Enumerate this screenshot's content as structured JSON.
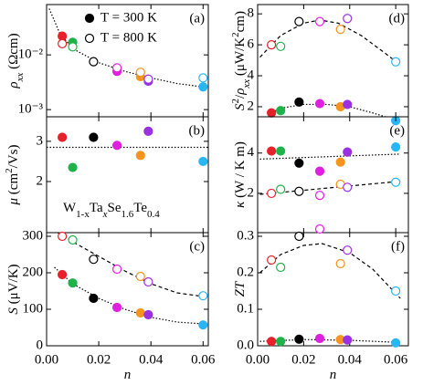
{
  "chart_data": [
    {
      "type": "scatter",
      "panel_label": "(a)",
      "log_y": true,
      "ylabel": [
        {
          "text": "ρ",
          "style": "italic"
        },
        {
          "text": "xx",
          "style": "sub-italic"
        },
        {
          "text": " (Ωcm)",
          "style": "normal"
        }
      ],
      "x": [
        0.006,
        0.01,
        0.018,
        0.027,
        0.036,
        0.039,
        0.06
      ],
      "point_colors": [
        "#e8202a",
        "#1db34a",
        "#000000",
        "#e020e0",
        "#f7941d",
        "#9b30e0",
        "#29b6f6"
      ],
      "xlim": [
        0,
        0.062
      ],
      "xticks": [
        0,
        0.02,
        0.04,
        0.06
      ],
      "ylim": [
        0.00074,
        0.083
      ],
      "yticks": [
        {
          "value": 0.001,
          "label": "10⁻³"
        },
        {
          "value": 0.01,
          "label": "10⁻²"
        }
      ],
      "series": [
        {
          "name": "T = 300 K",
          "filled": true,
          "values": [
            0.022,
            0.017,
            null,
            0.005,
            0.004,
            0.0033,
            0.0026
          ],
          "fit": {
            "dash": "1.5 2",
            "x": [
              0.001,
              0.005,
              0.01,
              0.02,
              0.03,
              0.04,
              0.05,
              0.06
            ],
            "values": [
              0.07,
              0.025,
              0.013,
              0.0072,
              0.005,
              0.0038,
              0.003,
              0.0026
            ]
          }
        },
        {
          "name": "T = 800 K",
          "filled": false,
          "values": [
            0.016,
            0.014,
            0.0075,
            0.0058,
            0.0048,
            0.0036,
            0.0038
          ]
        }
      ]
    },
    {
      "type": "scatter",
      "panel_label": "(b)",
      "ylabel": [
        {
          "text": "μ",
          "style": "italic"
        },
        {
          "text": " (cm",
          "style": "normal"
        },
        {
          "text": "2",
          "style": "sup"
        },
        {
          "text": "/Vs)",
          "style": "normal"
        }
      ],
      "annotation": [
        {
          "text": "W",
          "style": "normal"
        },
        {
          "text": "1-x",
          "style": "sub"
        },
        {
          "text": "Ta",
          "style": "normal"
        },
        {
          "text": "x",
          "style": "sub-italic"
        },
        {
          "text": "Se",
          "style": "normal"
        },
        {
          "text": "1.6",
          "style": "sub"
        },
        {
          "text": "Te",
          "style": "normal"
        },
        {
          "text": "0.4",
          "style": "sub"
        }
      ],
      "x": [
        0.006,
        0.01,
        0.018,
        0.027,
        0.036,
        0.039,
        0.06
      ],
      "point_colors": [
        "#e8202a",
        "#1db34a",
        "#000000",
        "#e020e0",
        "#f7941d",
        "#9b30e0",
        "#29b6f6"
      ],
      "xlim": [
        0,
        0.062
      ],
      "xticks": [
        0,
        0.02,
        0.04,
        0.06
      ],
      "ylim": [
        0.73,
        3.61
      ],
      "yticks": [
        2,
        3
      ],
      "series": [
        {
          "filled": true,
          "values": [
            3.1,
            2.35,
            3.1,
            2.9,
            2.65,
            3.25,
            2.5
          ],
          "fit": {
            "dash": "1.5 2",
            "x": [
              0,
              0.062
            ],
            "values": [
              2.85,
              2.85
            ]
          }
        }
      ]
    },
    {
      "type": "scatter",
      "panel_label": "(c)",
      "ylabel": [
        {
          "text": "S",
          "style": "italic"
        },
        {
          "text": " (μV/K)",
          "style": "normal"
        }
      ],
      "xlabel": [
        {
          "text": "n",
          "style": "italic"
        }
      ],
      "x": [
        0.006,
        0.01,
        0.018,
        0.027,
        0.036,
        0.039,
        0.06
      ],
      "point_colors": [
        "#e8202a",
        "#1db34a",
        "#000000",
        "#e020e0",
        "#f7941d",
        "#9b30e0",
        "#29b6f6"
      ],
      "xlim": [
        0,
        0.062
      ],
      "xticks": [
        {
          "value": 0,
          "label": "0.00"
        },
        {
          "value": 0.02,
          "label": "0.02"
        },
        {
          "value": 0.04,
          "label": "0.04"
        },
        {
          "value": 0.06,
          "label": "0.06"
        }
      ],
      "ylim": [
        0,
        310
      ],
      "yticks": [
        0,
        100,
        200,
        300
      ],
      "series": [
        {
          "filled": true,
          "values": [
            195,
            172,
            130,
            105,
            90,
            85,
            57
          ],
          "fit": {
            "dash": "1.5 2",
            "x": [
              0.003,
              0.01,
              0.02,
              0.03,
              0.04,
              0.05,
              0.06
            ],
            "values": [
              215,
              170,
              130,
              100,
              78,
              65,
              60
            ]
          }
        },
        {
          "filled": false,
          "values": [
            300,
            290,
            237,
            210,
            190,
            175,
            137
          ],
          "fit": {
            "dash": "4 3",
            "x": [
              0.002,
              0.01,
              0.02,
              0.03,
              0.04,
              0.05,
              0.06
            ],
            "values": [
              320,
              285,
              245,
              205,
              170,
              145,
              135
            ]
          }
        }
      ]
    },
    {
      "type": "scatter",
      "panel_label": "(d)",
      "ylabel": [
        {
          "text": "S",
          "style": "italic"
        },
        {
          "text": "2",
          "style": "sup"
        },
        {
          "text": "/",
          "style": "normal"
        },
        {
          "text": "ρ",
          "style": "italic"
        },
        {
          "text": "xx",
          "style": "sub-italic"
        },
        {
          "text": " (μW/K",
          "style": "normal"
        },
        {
          "text": "2",
          "style": "sup"
        },
        {
          "text": "cm)",
          "style": "normal"
        }
      ],
      "x": [
        0.006,
        0.01,
        0.018,
        0.027,
        0.036,
        0.039,
        0.06
      ],
      "point_colors": [
        "#e8202a",
        "#1db34a",
        "#000000",
        "#e020e0",
        "#f7941d",
        "#9b30e0",
        "#29b6f6"
      ],
      "xlim": [
        0,
        0.0655
      ],
      "xticks": [
        0,
        0.02,
        0.04,
        0.06
      ],
      "ylim": [
        1.35,
        8.6
      ],
      "yticks": [
        2,
        4,
        6,
        8
      ],
      "series": [
        {
          "filled": true,
          "values": [
            1.6,
            1.75,
            2.3,
            2.2,
            2.0,
            2.15,
            1.1
          ],
          "fit": {
            "dash": "1.5 2",
            "x": [
              0.005,
              0.01,
              0.02,
              0.03,
              0.04,
              0.05,
              0.06
            ],
            "values": [
              1.55,
              1.9,
              2.15,
              2.15,
              2.0,
              1.6,
              1.15
            ]
          }
        },
        {
          "filled": false,
          "values": [
            6.0,
            5.9,
            7.5,
            7.5,
            7.0,
            7.7,
            4.9
          ],
          "fit": {
            "dash": "4 3",
            "x": [
              0.001,
              0.01,
              0.02,
              0.027,
              0.035,
              0.045,
              0.055,
              0.062
            ],
            "values": [
              5.2,
              6.6,
              7.4,
              7.6,
              7.4,
              6.6,
              5.5,
              4.7
            ]
          }
        }
      ]
    },
    {
      "type": "scatter",
      "panel_label": "(e)",
      "ylabel": [
        {
          "text": "κ",
          "style": "italic"
        },
        {
          "text": " (W / K m)",
          "style": "normal"
        }
      ],
      "x": [
        0.006,
        0.01,
        0.018,
        0.027,
        0.036,
        0.039,
        0.06
      ],
      "point_colors": [
        "#e8202a",
        "#1db34a",
        "#000000",
        "#e020e0",
        "#f7941d",
        "#9b30e0",
        "#29b6f6"
      ],
      "xlim": [
        0,
        0.0655
      ],
      "xticks": [
        0,
        0.02,
        0.04,
        0.06
      ],
      "ylim": [
        0.05,
        5.8
      ],
      "yticks": [
        2,
        4
      ],
      "series": [
        {
          "filled": true,
          "values": [
            4.1,
            4.1,
            3.5,
            3.1,
            3.55,
            4.05,
            4.3
          ],
          "fit": {
            "dash": "1.5 2",
            "x": [
              0.001,
              0.062
            ],
            "values": [
              3.7,
              3.95
            ]
          }
        },
        {
          "filled": false,
          "values": [
            2.0,
            2.2,
            2.1,
            1.9,
            2.45,
            2.3,
            2.55
          ],
          "fit": {
            "dash": "4 3",
            "x": [
              0.001,
              0.062
            ],
            "values": [
              1.95,
              2.6
            ]
          }
        }
      ]
    },
    {
      "type": "scatter",
      "panel_label": "(f)",
      "ylabel": [
        {
          "text": "ZT",
          "style": "italic"
        }
      ],
      "xlabel": [
        {
          "text": "n",
          "style": "italic"
        }
      ],
      "x": [
        0.006,
        0.01,
        0.018,
        0.027,
        0.036,
        0.039,
        0.06
      ],
      "point_colors": [
        "#e8202a",
        "#1db34a",
        "#000000",
        "#e020e0",
        "#f7941d",
        "#9b30e0",
        "#29b6f6"
      ],
      "xlim": [
        0,
        0.0655
      ],
      "xticks": [
        {
          "value": 0,
          "label": "0.00"
        },
        {
          "value": 0.02,
          "label": "0.02"
        },
        {
          "value": 0.04,
          "label": "0.04"
        },
        {
          "value": 0.06,
          "label": "0.06"
        }
      ],
      "ylim": [
        0,
        0.31
      ],
      "yticks": [
        {
          "value": 0,
          "label": "0.0"
        },
        {
          "value": 0.1,
          "label": "0.1"
        },
        {
          "value": 0.2,
          "label": "0.2"
        },
        {
          "value": 0.3,
          "label": "0.3"
        }
      ],
      "series": [
        {
          "filled": true,
          "values": [
            0.012,
            0.012,
            0.018,
            0.02,
            0.017,
            0.016,
            0.008
          ],
          "fit": {
            "dash": "1.5 2",
            "x": [
              0.001,
              0.02,
              0.04,
              0.062
            ],
            "values": [
              0.012,
              0.017,
              0.015,
              0.009
            ]
          }
        },
        {
          "filled": false,
          "values": [
            0.235,
            0.215,
            0.3,
            0.32,
            0.225,
            0.262,
            0.15
          ],
          "fit": {
            "dash": "4 3",
            "x": [
              0.001,
              0.01,
              0.02,
              0.028,
              0.04,
              0.05,
              0.062
            ],
            "values": [
              0.2,
              0.25,
              0.275,
              0.28,
              0.255,
              0.21,
              0.13
            ]
          }
        }
      ]
    }
  ]
}
